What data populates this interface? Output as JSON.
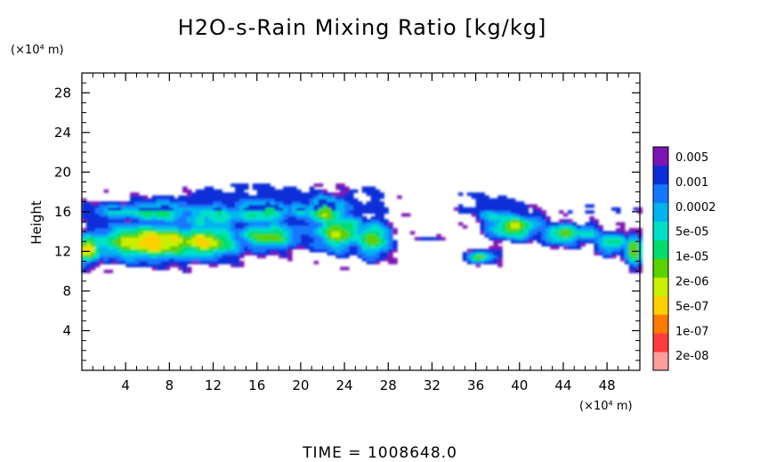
{
  "chart_data": {
    "type": "heatmap",
    "title": "H2O-s-Rain Mixing Ratio [kg/kg]",
    "ylabel": "Height",
    "y_unit": "(×10⁴ m)",
    "x_unit": "(×10⁴ m)",
    "xlim": [
      0,
      51
    ],
    "ylim": [
      0,
      30
    ],
    "x_ticks": [
      "4",
      "8",
      "12",
      "16",
      "20",
      "24",
      "28",
      "32",
      "36",
      "40",
      "44",
      "48"
    ],
    "y_ticks": [
      "4",
      "8",
      "12",
      "16",
      "20",
      "24",
      "28"
    ],
    "colorbar": {
      "labels": [
        "0.005",
        "0.001",
        "0.0002",
        "5e-05",
        "1e-05",
        "2e-06",
        "5e-07",
        "1e-07",
        "2e-08"
      ],
      "colors": [
        "#ff9c9c",
        "#ff3c3c",
        "#ff7a00",
        "#ffd000",
        "#c8ee00",
        "#5ad200",
        "#00dd6e",
        "#00e0c8",
        "#00b4f0",
        "#1478ff",
        "#0a2ed8",
        "#7e14b4"
      ]
    },
    "footer": "TIME = 1008648.0"
  }
}
